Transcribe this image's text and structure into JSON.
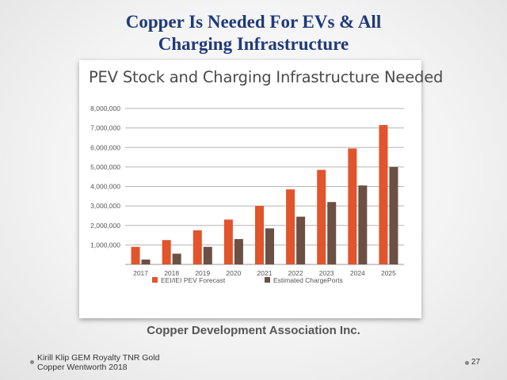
{
  "slide": {
    "title_line1": "Copper Is Needed For EVs & All",
    "title_line2": "Charging Infrastructure",
    "credit": "Copper Development Association Inc.",
    "footer_line1": "Kirill Klip GEM Royalty TNR Gold",
    "footer_line2": "Copper Wentworth 2018",
    "page_number": "27"
  },
  "chart_data": {
    "type": "bar",
    "title": "PEV Stock and Charging Infrastructure Needed",
    "categories": [
      "2017",
      "2018",
      "2019",
      "2020",
      "2021",
      "2022",
      "2023",
      "2024",
      "2025"
    ],
    "series": [
      {
        "name": "EEI/IEI PEV Forecast",
        "color": "#e2542b",
        "values": [
          900000,
          1250000,
          1750000,
          2300000,
          3000000,
          3850000,
          4850000,
          5950000,
          7150000
        ]
      },
      {
        "name": "Estimated ChargePorts",
        "color": "#6b5043",
        "values": [
          250000,
          550000,
          900000,
          1300000,
          1850000,
          2450000,
          3200000,
          4050000,
          5000000
        ]
      }
    ],
    "yticks": [
      1000000,
      2000000,
      3000000,
      4000000,
      5000000,
      6000000,
      7000000,
      8000000
    ],
    "ytick_labels": [
      "1,000,000",
      "2,000,000",
      "3,000,000",
      "4,000,000",
      "5,000,000",
      "6,000,000",
      "7,000,000",
      "8,000,000"
    ],
    "ylim": [
      0,
      8000000
    ],
    "xlabel": "",
    "ylabel": "",
    "grid": true,
    "legend_position": "bottom-left"
  }
}
